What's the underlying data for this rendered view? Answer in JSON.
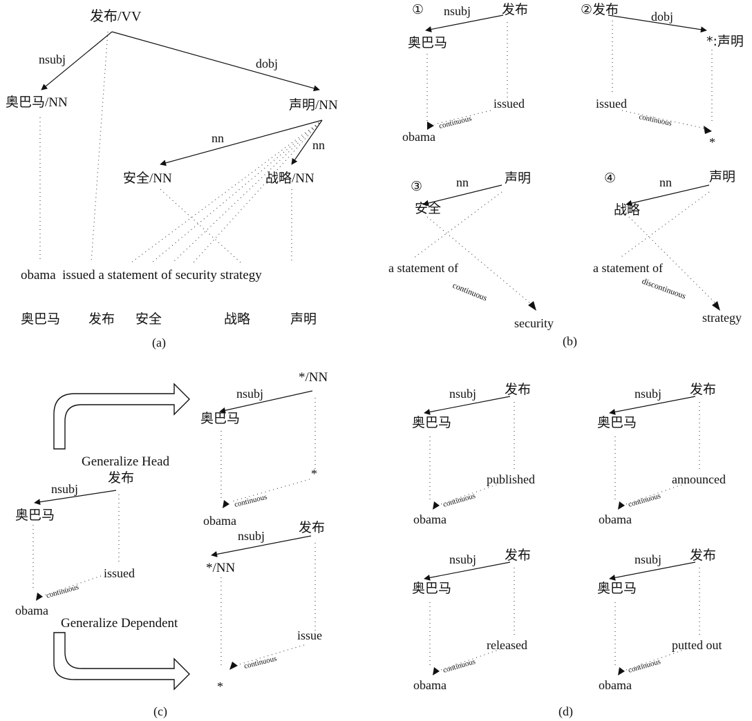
{
  "panel_a": {
    "caption": "(a)",
    "root": "发布/VV",
    "n_obama": "奥巴马/NN",
    "n_statement": "声明/NN",
    "n_security": "安全/NN",
    "n_strategy": "战略/NN",
    "lbl_nsubj": "nsubj",
    "lbl_dobj": "dobj",
    "lbl_nn1": "nn",
    "lbl_nn2": "nn",
    "sentence": "obama  issued a statement of security strategy",
    "order": [
      "奥巴马",
      "发布",
      "安全",
      "战略",
      "声明"
    ]
  },
  "panel_b": {
    "caption": "(b)",
    "r1": {
      "num": "①",
      "head": "发布",
      "dep": "奥巴马",
      "rel": "nsubj",
      "head_en": "issued",
      "dep_en": "obama",
      "link": "continuous"
    },
    "r2": {
      "num": "②",
      "head": "发布",
      "dep": "*:声明",
      "rel": "dobj",
      "head_en": "issued",
      "dep_en": "*",
      "link": "continuous"
    },
    "r3": {
      "num": "③",
      "head": "声明",
      "dep": "安全",
      "rel": "nn",
      "head_en": "a statement of",
      "dep_en": "security",
      "link": "continuous"
    },
    "r4": {
      "num": "④",
      "head": "声明",
      "dep": "战略",
      "rel": "nn",
      "head_en": "a statement of",
      "dep_en": "strategy",
      "link": "discontinuous"
    }
  },
  "panel_c": {
    "caption": "(c)",
    "gen_head_label": "Generalize Head",
    "gen_dep_label": "Generalize Dependent",
    "src": {
      "head": "发布",
      "dep": "奥巴马",
      "rel": "nsubj",
      "head_en": "issued",
      "dep_en": "obama",
      "link": "continuous"
    },
    "gh": {
      "head": "*/NN",
      "dep": "奥巴马",
      "rel": "nsubj",
      "head_en": "*",
      "dep_en": "obama",
      "link": "continuous"
    },
    "gd": {
      "head": "发布",
      "dep": "*/NN",
      "rel": "nsubj",
      "head_en": "issue",
      "dep_en": "*",
      "link": "continuous"
    }
  },
  "panel_d": {
    "caption": "(d)",
    "items": [
      {
        "head": "发布",
        "dep": "奥巴马",
        "rel": "nsubj",
        "head_en": "published",
        "dep_en": "obama",
        "link": "continuous"
      },
      {
        "head": "发布",
        "dep": "奥巴马",
        "rel": "nsubj",
        "head_en": "announced",
        "dep_en": "obama",
        "link": "continuous"
      },
      {
        "head": "发布",
        "dep": "奥巴马",
        "rel": "nsubj",
        "head_en": "released",
        "dep_en": "obama",
        "link": "continuous"
      },
      {
        "head": "发布",
        "dep": "奥巴马",
        "rel": "nsubj",
        "head_en": "putted out",
        "dep_en": "obama",
        "link": "continuous"
      }
    ]
  }
}
